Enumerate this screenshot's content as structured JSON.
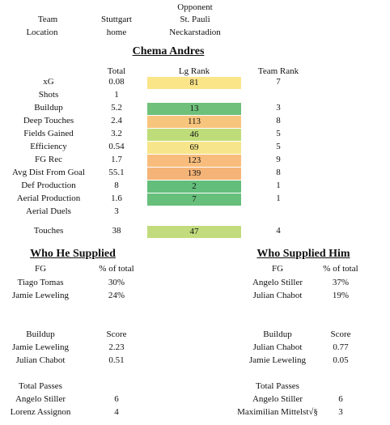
{
  "header": {
    "opponent_label": "Opponent",
    "team_label": "Team",
    "team_value": "Stuttgart",
    "opponent_value": "St. Pauli",
    "location_label": "Location",
    "location_value": "home",
    "stadium_value": "Neckarstadion"
  },
  "player": {
    "name": "Chema Andres"
  },
  "stats": {
    "headers": {
      "total": "Total",
      "lg_rank": "Lg Rank",
      "team_rank": "Team Rank"
    },
    "rows": [
      {
        "label": "xG",
        "total": "0.08",
        "lg_rank": "81",
        "team_rank": "7",
        "color": "#fbe589"
      },
      {
        "label": "Shots",
        "total": "1",
        "lg_rank": "",
        "team_rank": "",
        "color": ""
      },
      {
        "label": "Buildup",
        "total": "5.2",
        "lg_rank": "13",
        "team_rank": "3",
        "color": "#6fc07a"
      },
      {
        "label": "Deep Touches",
        "total": "2.4",
        "lg_rank": "113",
        "team_rank": "8",
        "color": "#f8c57d"
      },
      {
        "label": "Fields Gained",
        "total": "3.2",
        "lg_rank": "46",
        "team_rank": "5",
        "color": "#bfdc7a"
      },
      {
        "label": "Efficiency",
        "total": "0.54",
        "lg_rank": "69",
        "team_rank": "5",
        "color": "#f6e58a"
      },
      {
        "label": "FG Rec",
        "total": "1.7",
        "lg_rank": "123",
        "team_rank": "9",
        "color": "#f8bd7c"
      },
      {
        "label": "Avg Dist From Goal",
        "total": "55.1",
        "lg_rank": "139",
        "team_rank": "8",
        "color": "#f5b477"
      },
      {
        "label": "Def Production",
        "total": "8",
        "lg_rank": "2",
        "team_rank": "1",
        "color": "#63be7b"
      },
      {
        "label": "Aerial Production",
        "total": "1.6",
        "lg_rank": "7",
        "team_rank": "1",
        "color": "#66bf7b"
      },
      {
        "label": "Aerial Duels",
        "total": "3",
        "lg_rank": "",
        "team_rank": "",
        "color": ""
      },
      {
        "label": "Touches",
        "total": "38",
        "lg_rank": "47",
        "team_rank": "4",
        "color": "#c2dc7d"
      }
    ]
  },
  "supplied": {
    "title": "Who He Supplied",
    "fg": {
      "col1": "FG",
      "col2": "% of total",
      "rows": [
        {
          "name": "Tiago Tomas",
          "value": "30%"
        },
        {
          "name": "Jamie Leweling",
          "value": "24%"
        }
      ]
    },
    "buildup": {
      "col1": "Buildup",
      "col2": "Score",
      "rows": [
        {
          "name": "Jamie Leweling",
          "value": "2.23"
        },
        {
          "name": "Julian Chabot",
          "value": "0.51"
        }
      ]
    },
    "passes": {
      "col1": "Total Passes",
      "rows": [
        {
          "name": "Angelo Stiller",
          "value": "6"
        },
        {
          "name": "Lorenz Assignon",
          "value": "4"
        }
      ]
    }
  },
  "supplied_him": {
    "title": "Who Supplied Him",
    "fg": {
      "col1": "FG",
      "col2": "% of total",
      "rows": [
        {
          "name": "Angelo Stiller",
          "value": "37%"
        },
        {
          "name": "Julian Chabot",
          "value": "19%"
        }
      ]
    },
    "buildup": {
      "col1": "Buildup",
      "col2": "Score",
      "rows": [
        {
          "name": "Julian Chabot",
          "value": "0.77"
        },
        {
          "name": "Jamie Leweling",
          "value": "0.05"
        }
      ]
    },
    "passes": {
      "col1": "Total Passes",
      "rows": [
        {
          "name": "Angelo Stiller",
          "value": "6"
        },
        {
          "name": "Maximilian Mittelst√§",
          "value": "3"
        }
      ]
    }
  }
}
